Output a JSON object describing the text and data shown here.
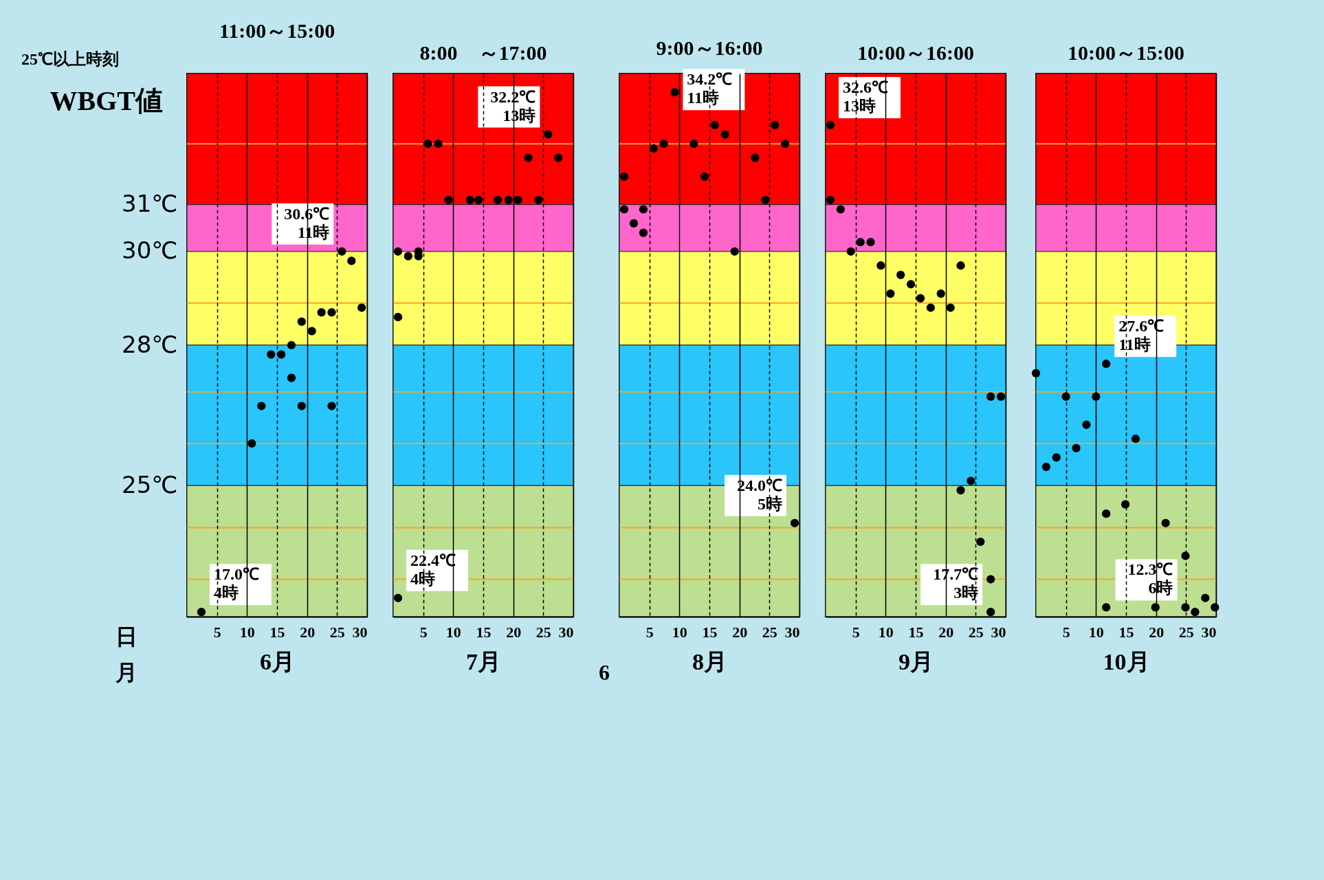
{
  "chart_data": [
    {
      "type": "scatter",
      "title": "11:00～15:00",
      "xlabel": "6月",
      "ylabel": "WBGT値",
      "marker": "circle",
      "grid": "x",
      "xlim": [
        0,
        30
      ],
      "xticks": [
        5,
        10,
        15,
        20,
        25,
        30
      ],
      "ylim": [
        22.2,
        33.8
      ],
      "yticks": [
        {
          "value": 25,
          "label": "25℃"
        },
        {
          "value": 28,
          "label": "28℃"
        },
        {
          "value": 30,
          "label": "30℃"
        },
        {
          "value": 31,
          "label": "31℃"
        }
      ],
      "series": [
        {
          "color": "#000000",
          "x": [
            2.4,
            10.8,
            12.4,
            14.0,
            15.7,
            17.4,
            17.4,
            19.1,
            19.1,
            20.8,
            22.4,
            24.1,
            24.1,
            25.8,
            27.4,
            29.1
          ],
          "values": [
            22.3,
            25.9,
            26.7,
            27.8,
            27.8,
            28.0,
            27.3,
            28.5,
            26.7,
            28.3,
            28.7,
            28.7,
            26.7,
            30.0,
            29.8,
            28.8
          ]
        }
      ],
      "bands": [
        {
          "axis": "y",
          "from": 31,
          "to": 33.8,
          "color": "#ff0000"
        },
        {
          "axis": "y",
          "from": 30,
          "to": 31,
          "color": "#ff66cc"
        },
        {
          "axis": "y",
          "from": 28,
          "to": 30,
          "color": "#ffff66"
        },
        {
          "axis": "y",
          "from": 25,
          "to": 28,
          "color": "#29c5fb"
        },
        {
          "axis": "y",
          "from": 22.2,
          "to": 25,
          "color": "#bcdf91"
        }
      ],
      "ref_lines": [
        {
          "axis": "y",
          "value": 32.3,
          "color": "#f5a623"
        },
        {
          "axis": "y",
          "value": 28.9,
          "color": "#f5a623"
        },
        {
          "axis": "y",
          "value": 27.0,
          "color": "#f5a623"
        },
        {
          "axis": "y",
          "value": 25.9,
          "color": "#f5a623"
        },
        {
          "axis": "y",
          "value": 24.1,
          "color": "#f5a623"
        },
        {
          "axis": "y",
          "value": 23.0,
          "color": "#f5a623"
        }
      ],
      "annotations": [
        "25℃以上時刻",
        "日",
        "月",
        {
          "text": "30.6℃\n11時",
          "x": 25.8,
          "y": 30.0
        },
        {
          "text": "17.0℃\n4時",
          "x": 2.4,
          "y": 22.3
        }
      ]
    },
    {
      "type": "scatter",
      "title": "8:00　～17:00",
      "xlabel": "7月",
      "marker": "circle",
      "grid": "x",
      "tick_labels": "x",
      "xlim": [
        0,
        30
      ],
      "xticks": [
        5,
        10,
        15,
        20,
        25,
        30
      ],
      "ylim": [
        22.2,
        33.8
      ],
      "series": [
        {
          "color": "#000000",
          "x": [
            0.8,
            2.5,
            4.2,
            4.2,
            0.8,
            0.8,
            5.8,
            7.5,
            9.2,
            12.8,
            14.2,
            17.4,
            19.2,
            20.8,
            22.5,
            24.2,
            25.8,
            27.5
          ],
          "values": [
            30.0,
            29.9,
            30.0,
            29.9,
            28.6,
            22.6,
            32.3,
            32.3,
            31.1,
            31.1,
            31.1,
            31.1,
            31.1,
            31.1,
            32.0,
            31.1,
            32.5,
            32.0
          ]
        }
      ],
      "bands": [
        {
          "axis": "y",
          "from": 31,
          "to": 33.8,
          "color": "#ff0000"
        },
        {
          "axis": "y",
          "from": 30,
          "to": 31,
          "color": "#ff66cc"
        },
        {
          "axis": "y",
          "from": 28,
          "to": 30,
          "color": "#ffff66"
        },
        {
          "axis": "y",
          "from": 25,
          "to": 28,
          "color": "#29c5fb"
        },
        {
          "axis": "y",
          "from": 22.2,
          "to": 25,
          "color": "#bcdf91"
        }
      ],
      "ref_lines": [
        {
          "axis": "y",
          "value": 32.3,
          "color": "#f5a623"
        },
        {
          "axis": "y",
          "value": 28.9,
          "color": "#f5a623"
        },
        {
          "axis": "y",
          "value": 27.0,
          "color": "#f5a623"
        },
        {
          "axis": "y",
          "value": 25.9,
          "color": "#f5a623"
        },
        {
          "axis": "y",
          "value": 24.1,
          "color": "#f5a623"
        },
        {
          "axis": "y",
          "value": 23.0,
          "color": "#f5a623"
        }
      ],
      "annotations": [
        {
          "text": "32.2℃\n13時",
          "x": 25.8,
          "y": 32.5
        },
        {
          "text": "22.4℃\n4時",
          "x": 0.8,
          "y": 22.6
        }
      ]
    },
    {
      "type": "scatter",
      "title": "9:00～16:00",
      "xlabel": "8月",
      "marker": "circle",
      "grid": "x",
      "tick_labels": "x",
      "xlim": [
        0,
        30
      ],
      "xticks": [
        5,
        10,
        15,
        20,
        25,
        30
      ],
      "ylim": [
        22.2,
        33.8
      ],
      "series": [
        {
          "color": "#000000",
          "x": [
            0.8,
            0.8,
            2.4,
            4.0,
            4.0,
            5.7,
            7.4,
            9.2,
            12.4,
            14.2,
            15.9,
            17.6,
            19.2,
            22.6,
            24.3,
            25.9,
            27.6,
            29.2
          ],
          "values": [
            31.6,
            30.9,
            30.6,
            30.9,
            30.4,
            32.2,
            32.3,
            33.4,
            32.3,
            31.6,
            32.7,
            32.5,
            30.0,
            32.0,
            31.1,
            32.7,
            32.3,
            24.2
          ]
        }
      ],
      "bands": [
        {
          "axis": "y",
          "from": 31,
          "to": 33.8,
          "color": "#ff0000"
        },
        {
          "axis": "y",
          "from": 30,
          "to": 31,
          "color": "#ff66cc"
        },
        {
          "axis": "y",
          "from": 28,
          "to": 30,
          "color": "#ffff66"
        },
        {
          "axis": "y",
          "from": 25,
          "to": 28,
          "color": "#29c5fb"
        },
        {
          "axis": "y",
          "from": 22.2,
          "to": 25,
          "color": "#bcdf91"
        }
      ],
      "ref_lines": [
        {
          "axis": "y",
          "value": 32.3,
          "color": "#f5a623"
        },
        {
          "axis": "y",
          "value": 28.9,
          "color": "#f5a623"
        },
        {
          "axis": "y",
          "value": 27.0,
          "color": "#f5a623"
        },
        {
          "axis": "y",
          "value": 25.9,
          "color": "#f5a623"
        },
        {
          "axis": "y",
          "value": 24.1,
          "color": "#f5a623"
        },
        {
          "axis": "y",
          "value": 23.0,
          "color": "#f5a623"
        }
      ],
      "annotations": [
        "6",
        {
          "text": "34.2℃\n11時",
          "x": 9.2,
          "y": 33.4
        },
        {
          "text": "24.0℃\n5時",
          "x": 29.2,
          "y": 24.2
        }
      ]
    },
    {
      "type": "scatter",
      "title": "10:00～16:00",
      "xlabel": "9月",
      "marker": "circle",
      "grid": "x",
      "tick_labels": "x",
      "xlim": [
        0,
        30
      ],
      "xticks": [
        5,
        10,
        15,
        20,
        25,
        30
      ],
      "ylim": [
        22.2,
        33.8
      ],
      "series": [
        {
          "color": "#000000",
          "x": [
            0.8,
            0.8,
            2.5,
            4.2,
            5.8,
            7.5,
            9.2,
            10.8,
            12.5,
            14.2,
            15.8,
            17.5,
            19.2,
            20.8,
            22.5,
            22.5,
            24.2,
            25.8,
            27.5,
            27.5,
            27.5,
            29.2
          ],
          "values": [
            32.7,
            31.1,
            30.9,
            30.0,
            30.2,
            30.2,
            29.7,
            29.1,
            29.5,
            29.3,
            29.0,
            28.8,
            29.1,
            28.8,
            29.7,
            24.9,
            25.1,
            23.8,
            26.9,
            23.0,
            22.3,
            26.9
          ]
        }
      ],
      "bands": [
        {
          "axis": "y",
          "from": 31,
          "to": 33.8,
          "color": "#ff0000"
        },
        {
          "axis": "y",
          "from": 30,
          "to": 31,
          "color": "#ff66cc"
        },
        {
          "axis": "y",
          "from": 28,
          "to": 30,
          "color": "#ffff66"
        },
        {
          "axis": "y",
          "from": 25,
          "to": 28,
          "color": "#29c5fb"
        },
        {
          "axis": "y",
          "from": 22.2,
          "to": 25,
          "color": "#bcdf91"
        }
      ],
      "ref_lines": [
        {
          "axis": "y",
          "value": 32.3,
          "color": "#f5a623"
        },
        {
          "axis": "y",
          "value": 28.9,
          "color": "#f5a623"
        },
        {
          "axis": "y",
          "value": 27.0,
          "color": "#f5a623"
        },
        {
          "axis": "y",
          "value": 25.9,
          "color": "#f5a623"
        },
        {
          "axis": "y",
          "value": 24.1,
          "color": "#f5a623"
        },
        {
          "axis": "y",
          "value": 23.0,
          "color": "#f5a623"
        }
      ],
      "annotations": [
        {
          "text": "32.6℃\n13時",
          "x": 0.8,
          "y": 32.7
        },
        {
          "text": "17.7℃\n3時",
          "x": 27.5,
          "y": 22.3
        }
      ]
    },
    {
      "type": "scatter",
      "title": "10:00～15:00",
      "xlabel": "10月",
      "marker": "circle",
      "grid": "x",
      "tick_labels": "x",
      "xlim": [
        0,
        30
      ],
      "xticks": [
        5,
        10,
        15,
        20,
        25,
        30
      ],
      "ylim": [
        22.2,
        33.8
      ],
      "series": [
        {
          "color": "#000000",
          "x": [
            0.0,
            1.7,
            3.4,
            5.0,
            6.7,
            8.4,
            10.0,
            11.7,
            11.7,
            11.7,
            14.9,
            16.6,
            19.9,
            21.6,
            24.9,
            24.9,
            26.5,
            28.2,
            29.8
          ],
          "values": [
            27.4,
            25.4,
            25.6,
            26.9,
            25.8,
            26.3,
            26.9,
            27.6,
            24.4,
            22.4,
            24.6,
            26.0,
            22.4,
            24.2,
            23.5,
            22.4,
            22.3,
            22.6,
            22.4
          ]
        }
      ],
      "bands": [
        {
          "axis": "y",
          "from": 31,
          "to": 33.8,
          "color": "#ff0000"
        },
        {
          "axis": "y",
          "from": 30,
          "to": 31,
          "color": "#ff66cc"
        },
        {
          "axis": "y",
          "from": 28,
          "to": 30,
          "color": "#ffff66"
        },
        {
          "axis": "y",
          "from": 25,
          "to": 28,
          "color": "#29c5fb"
        },
        {
          "axis": "y",
          "from": 22.2,
          "to": 25,
          "color": "#bcdf91"
        }
      ],
      "ref_lines": [
        {
          "axis": "y",
          "value": 32.3,
          "color": "#f5a623"
        },
        {
          "axis": "y",
          "value": 28.9,
          "color": "#f5a623"
        },
        {
          "axis": "y",
          "value": 27.0,
          "color": "#f5a623"
        },
        {
          "axis": "y",
          "value": 25.9,
          "color": "#f5a623"
        },
        {
          "axis": "y",
          "value": 24.1,
          "color": "#f5a623"
        },
        {
          "axis": "y",
          "value": 23.0,
          "color": "#f5a623"
        }
      ],
      "annotations": [
        {
          "text": "27.6℃\n11時",
          "x": 11.7,
          "y": 27.6
        },
        {
          "text": "12.3℃\n6時",
          "x": 24.9,
          "y": 22.4
        }
      ]
    }
  ]
}
